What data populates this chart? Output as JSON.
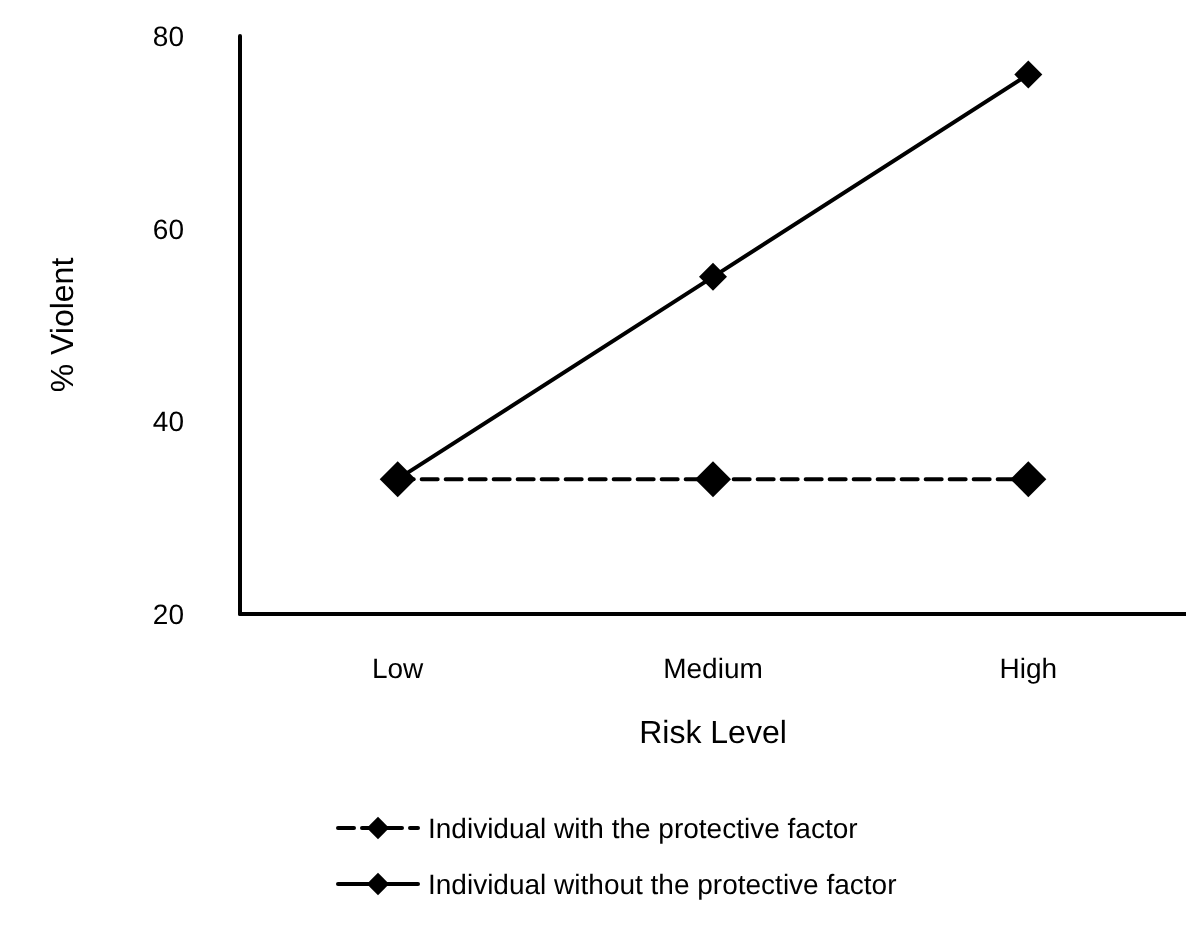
{
  "chart_data": {
    "type": "line",
    "xlabel": "Risk Level",
    "ylabel": "% Violent",
    "categories": [
      "Low",
      "Medium",
      "High"
    ],
    "series": [
      {
        "name": "Individual with the protective factor",
        "color": "#000000",
        "values": [
          34,
          34,
          34
        ],
        "line_style": "dashed"
      },
      {
        "name": "Individual without the protective factor",
        "color": "#000000",
        "values": [
          34,
          55,
          76
        ],
        "line_style": "solid"
      }
    ],
    "ylim": [
      20,
      80
    ],
    "yticks": [
      20,
      40,
      60,
      80
    ],
    "grid": false,
    "legend": "bottom",
    "marker": "diamond"
  }
}
